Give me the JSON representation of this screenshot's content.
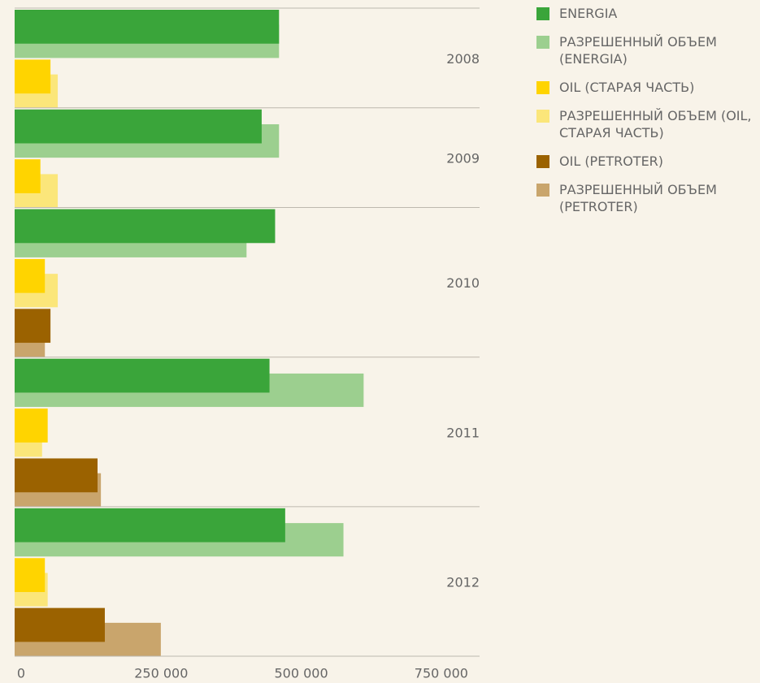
{
  "chart_data": {
    "type": "bar",
    "orientation": "horizontal",
    "categories": [
      "2008",
      "2009",
      "2010",
      "2011",
      "2012"
    ],
    "series": [
      {
        "name": "ENERGIA",
        "color": "#3aa53a",
        "values": [
          472000,
          441000,
          465000,
          455000,
          483000
        ]
      },
      {
        "name": "РАЗРЕШЕННЫЙ ОБЪЕМ (ENERGIA)",
        "color": "#9ccf8f",
        "values": [
          472000,
          472000,
          414000,
          623000,
          587000
        ]
      },
      {
        "name": "OIL (СТАРАЯ ЧАСТЬ)",
        "color": "#ffd400",
        "values": [
          64000,
          46000,
          54000,
          59000,
          54000
        ]
      },
      {
        "name": "РАЗРЕШЕННЫЙ ОБЪЕМ (OIL, СТАРАЯ ЧАСТЬ)",
        "color": "#fbe67a",
        "values": [
          77000,
          77000,
          77000,
          49000,
          59000
        ]
      },
      {
        "name": "OIL (PETROTER)",
        "color": "#9b6200",
        "values": [
          null,
          null,
          64000,
          148000,
          161000
        ]
      },
      {
        "name": "РАЗРЕШЕННЫЙ ОБЪЕМ (PETROTER)",
        "color": "#c9a56c",
        "values": [
          null,
          null,
          54000,
          154000,
          261000
        ]
      }
    ],
    "xlim": [
      0,
      830000
    ],
    "xticks": [
      0,
      {
        "value": 250000,
        "label": "250 000"
      },
      {
        "value": 500000,
        "label": "500 000"
      },
      {
        "value": 750000,
        "label": "750 000"
      }
    ]
  }
}
